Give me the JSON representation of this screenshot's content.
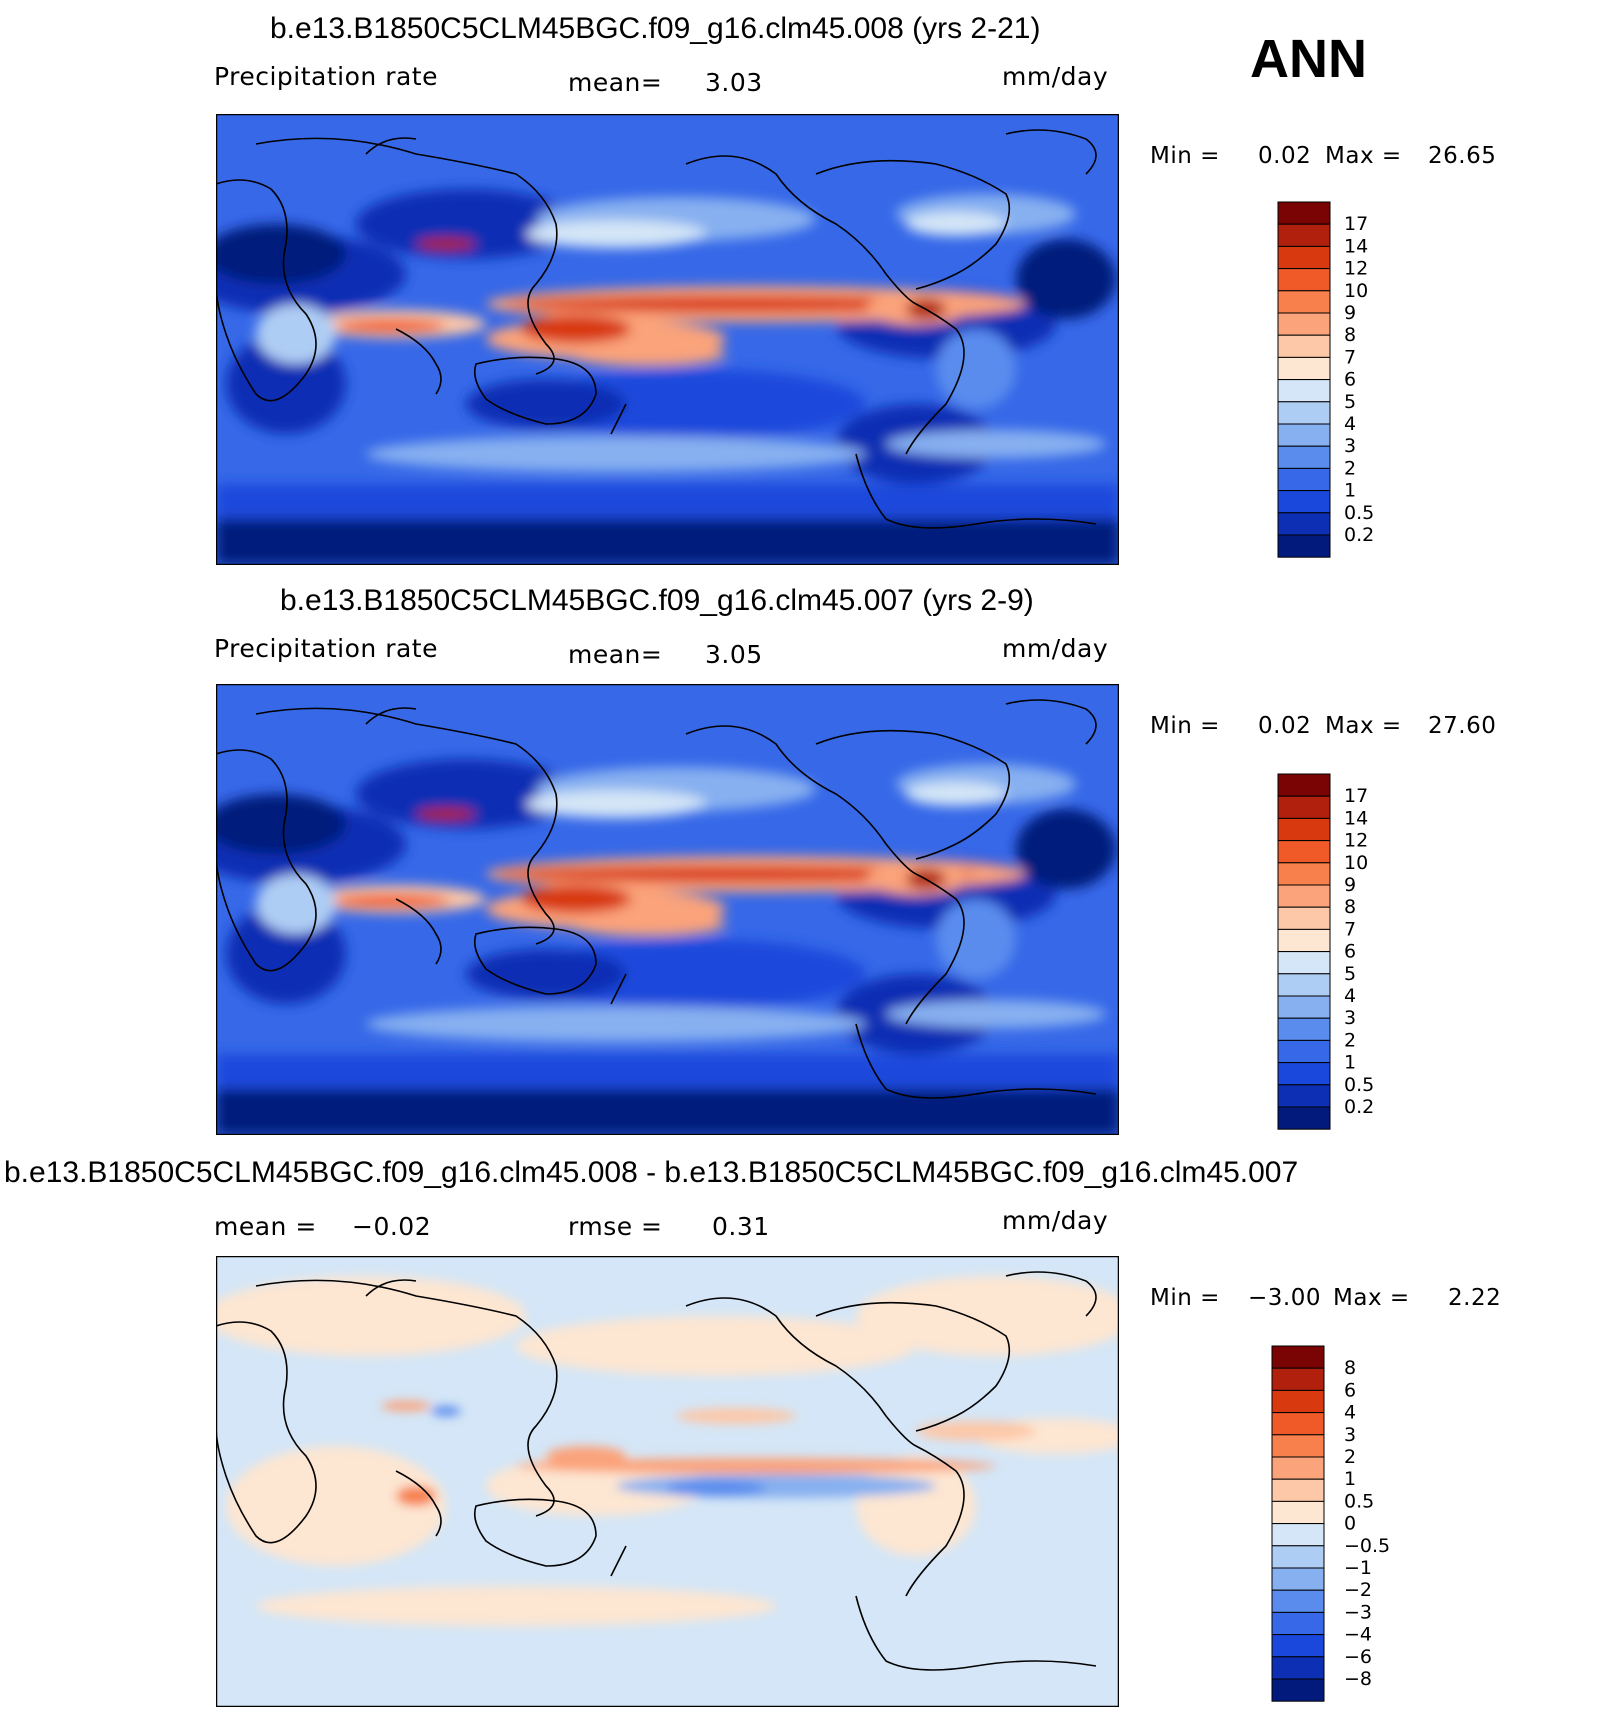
{
  "season": "ANN",
  "panels": [
    {
      "title": "b.e13.B1850C5CLM45BGC.f09_g16.clm45.008 (yrs 2-21)",
      "left_label": "Precipitation  rate",
      "mean_label": "mean=",
      "mean_value": "3.03",
      "units": "mm/day",
      "min_label": "Min  =",
      "min_value": "0.02",
      "max_label": "Max  =",
      "max_value": "26.65",
      "colorbar": {
        "labels": [
          "17",
          "14",
          "12",
          "10",
          "9",
          "8",
          "7",
          "6",
          "5",
          "4",
          "3",
          "2",
          "1",
          "0.5",
          "0.2"
        ],
        "colors": [
          "#7a0403",
          "#b0200c",
          "#d8390e",
          "#f05a28",
          "#f7804d",
          "#fba37a",
          "#fdc8a8",
          "#fde6d2",
          "#d4e6f7",
          "#aecdf4",
          "#87b0f0",
          "#5a8cee",
          "#3668e8",
          "#1a48dc",
          "#0c2fb4",
          "#021a7c"
        ]
      }
    },
    {
      "title": "b.e13.B1850C5CLM45BGC.f09_g16.clm45.007 (yrs 2-9)",
      "left_label": "Precipitation  rate",
      "mean_label": "mean=",
      "mean_value": "3.05",
      "units": "mm/day",
      "min_label": "Min  =",
      "min_value": "0.02",
      "max_label": "Max  =",
      "max_value": "27.60",
      "colorbar": {
        "labels": [
          "17",
          "14",
          "12",
          "10",
          "9",
          "8",
          "7",
          "6",
          "5",
          "4",
          "3",
          "2",
          "1",
          "0.5",
          "0.2"
        ],
        "colors": [
          "#7a0403",
          "#b0200c",
          "#d8390e",
          "#f05a28",
          "#f7804d",
          "#fba37a",
          "#fdc8a8",
          "#fde6d2",
          "#d4e6f7",
          "#aecdf4",
          "#87b0f0",
          "#5a8cee",
          "#3668e8",
          "#1a48dc",
          "#0c2fb4",
          "#021a7c"
        ]
      }
    },
    {
      "title": "b.e13.B1850C5CLM45BGC.f09_g16.clm45.008 - b.e13.B1850C5CLM45BGC.f09_g16.clm45.007",
      "left_label": "mean  =",
      "mean_label": "rmse  =",
      "mean_value": "0.31",
      "extra_value": "−0.02",
      "units": "mm/day",
      "min_label": "Min  =",
      "min_value": "−3.00",
      "max_label": "Max  =",
      "max_value": "2.22",
      "colorbar": {
        "labels": [
          "8",
          "6",
          "4",
          "3",
          "2",
          "1",
          "0.5",
          "0",
          "−0.5",
          "−1",
          "−2",
          "−3",
          "−4",
          "−6",
          "−8"
        ],
        "colors": [
          "#7a0403",
          "#b0200c",
          "#d8390e",
          "#f05a28",
          "#f7804d",
          "#fba37a",
          "#fdc8a8",
          "#fde6d2",
          "#d4e6f7",
          "#aecdf4",
          "#87b0f0",
          "#5a8cee",
          "#3668e8",
          "#1a48dc",
          "#0c2fb4",
          "#021a7c"
        ]
      }
    }
  ]
}
